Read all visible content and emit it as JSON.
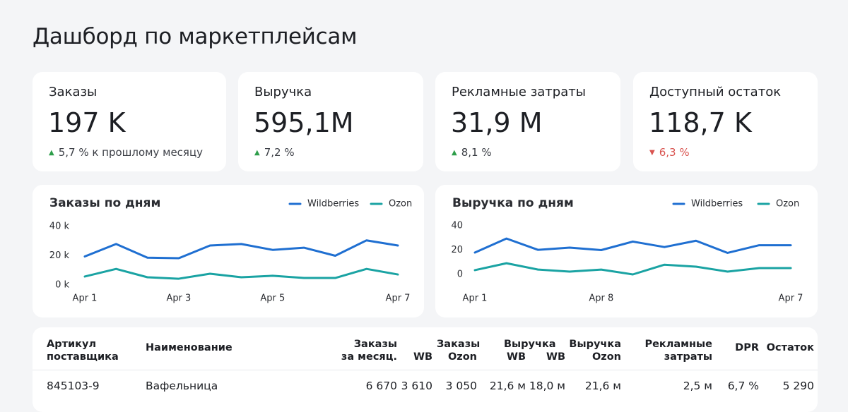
{
  "header": {
    "title": "Дашборд по маркетплейсам"
  },
  "kpis": [
    {
      "title": "Заказы",
      "value": "197 K",
      "change": "5,7 % к прошлому месяцу",
      "direction": "up"
    },
    {
      "title": "Выручка",
      "value": "595,1M",
      "change": "7,2 %",
      "direction": "up"
    },
    {
      "title": "Рекламные затраты",
      "value": "31,9 M",
      "change": "8,1 %",
      "direction": "up"
    },
    {
      "title": "Доступный остаток",
      "value": "118,7 K",
      "change": "6,3 %",
      "direction": "down"
    }
  ],
  "chart_data": [
    {
      "type": "line",
      "title": "Заказы по дням",
      "categories": [
        "Apr 1",
        null,
        null,
        "Apr 3",
        null,
        null,
        "Apr 5",
        null,
        null,
        null,
        "Apr 7"
      ],
      "series": [
        {
          "name": "Wildberries",
          "color": "#1f6fd1",
          "values": [
            19.5,
            28,
            18.7,
            18.3,
            27,
            28,
            24,
            25.5,
            20,
            30.5,
            27
          ]
        },
        {
          "name": "Ozon",
          "color": "#1aa3a3",
          "values": [
            5.8,
            11,
            5.3,
            4.3,
            7.7,
            5.3,
            6.3,
            4.8,
            4.8,
            11,
            7.2
          ]
        }
      ],
      "ylim": [
        0,
        40
      ],
      "yticks": [
        {
          "value": 0,
          "label": "0 k"
        },
        {
          "value": 20,
          "label": "20 k"
        },
        {
          "value": 40,
          "label": "40 k"
        }
      ],
      "legend": "top-right"
    },
    {
      "type": "line",
      "title": "Выручка по дням",
      "categories": [
        "Apr 1",
        null,
        null,
        null,
        "Apr 8",
        null,
        null,
        null,
        null,
        null,
        "Apr 7"
      ],
      "series": [
        {
          "name": "Wildberries",
          "color": "#1f6fd1",
          "values": [
            18,
            29.5,
            20.2,
            22,
            20,
            27,
            22.5,
            27.7,
            17.7,
            24,
            24
          ]
        },
        {
          "name": "Ozon",
          "color": "#1aa3a3",
          "values": [
            3.5,
            9.2,
            4,
            2.3,
            4,
            0,
            8,
            6.4,
            2.3,
            5.2,
            5.2
          ]
        }
      ],
      "ylim": [
        0,
        40
      ],
      "yticks": [
        0,
        20,
        40
      ],
      "legend": "top-right"
    }
  ],
  "table": {
    "headers": [
      "Артикул\nпоставщика",
      "Наименование",
      "Заказы\nза месяц.",
      "Заказы",
      "WB",
      "Ozon",
      "Выручка",
      "WB",
      "WB",
      "Выручка\nOzon",
      "Рекламные\nзатраты",
      "DPR",
      "Остаток"
    ],
    "rows": [
      [
        "845103-9",
        "Вафельница",
        "6 670",
        "3 610",
        "3 050",
        "21,6 м",
        "18,0 м",
        "21,6 м",
        "2,5 м",
        "6,7 %",
        "5 290"
      ]
    ]
  }
}
